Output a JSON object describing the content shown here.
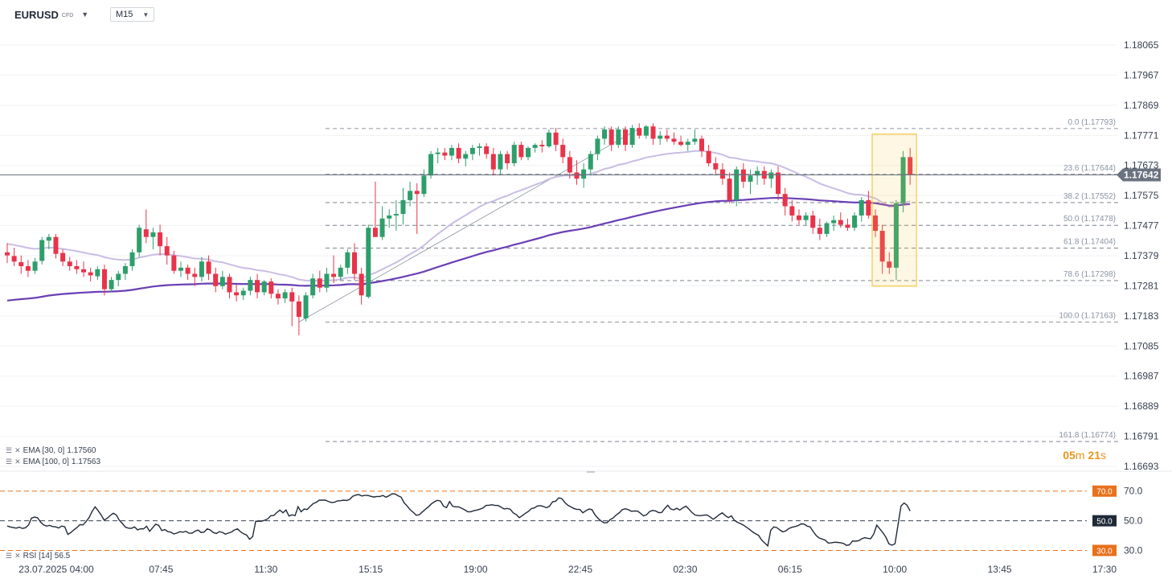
{
  "header": {
    "symbol": "EURUSD",
    "symbol_type": "CFD",
    "timeframe": "M15"
  },
  "indicators": {
    "ema30_label": "EMA [30, 0]",
    "ema30_value": "1.17560",
    "ema100_label": "EMA [100, 0]",
    "ema100_value": "1.17563",
    "rsi_label": "RSI [14]",
    "rsi_value": "56.5"
  },
  "countdown": {
    "minutes": "05",
    "m_unit": "m",
    "seconds": "21",
    "s_unit": "s"
  },
  "colors": {
    "up": "#2e9e6b",
    "down": "#e8334a",
    "ema30": "#c9bde3",
    "ema100": "#6a3fb5",
    "rsi_band": "#e8711c",
    "highlight": "#f5c842",
    "price_tag": "#6b7280"
  },
  "chart_data": {
    "type": "candlestick",
    "symbol": "EURUSD",
    "ylim": [
      1.16693,
      1.18065
    ],
    "y_ticks": [
      "1.18065",
      "1.17967",
      "1.17869",
      "1.17771",
      "1.17673",
      "1.17575",
      "1.17477",
      "1.17379",
      "1.17281",
      "1.17183",
      "1.17085",
      "1.16987",
      "1.16889",
      "1.16791",
      "1.16693"
    ],
    "x_ticks": [
      "23.07.2025  04:00",
      "07:45",
      "11:30",
      "15:15",
      "19:00",
      "22:45",
      "02:30",
      "06:15",
      "10:00",
      "13:45",
      "17:30"
    ],
    "current_price": "1.17642",
    "fibonacci": [
      {
        "label": "0.0 (1.17793)",
        "price": 1.17793
      },
      {
        "label": "23.6 (1.17644)",
        "price": 1.17644
      },
      {
        "label": "38.2 (1.17552)",
        "price": 1.17552
      },
      {
        "label": "50.0 (1.17478)",
        "price": 1.17478
      },
      {
        "label": "61.8 (1.17404)",
        "price": 1.17404
      },
      {
        "label": "78.6 (1.17298)",
        "price": 1.17298
      },
      {
        "label": "100.0 (1.17163)",
        "price": 1.17163
      },
      {
        "label": "161.8 (1.16774)",
        "price": 1.16774
      }
    ],
    "candles": [
      [
        1.1739,
        1.1742,
        1.17355,
        1.1738
      ],
      [
        1.17378,
        1.17405,
        1.17345,
        1.1736
      ],
      [
        1.17358,
        1.1738,
        1.1732,
        1.17345
      ],
      [
        1.17345,
        1.17365,
        1.1731,
        1.1733
      ],
      [
        1.1733,
        1.17372,
        1.1732,
        1.1736
      ],
      [
        1.17362,
        1.1744,
        1.1735,
        1.1743
      ],
      [
        1.17428,
        1.1745,
        1.174,
        1.1744
      ],
      [
        1.1744,
        1.1745,
        1.1737,
        1.17385
      ],
      [
        1.17388,
        1.174,
        1.17345,
        1.1736
      ],
      [
        1.1736,
        1.17375,
        1.1733,
        1.17345
      ],
      [
        1.17345,
        1.17365,
        1.1732,
        1.17335
      ],
      [
        1.17335,
        1.1736,
        1.1731,
        1.17325
      ],
      [
        1.17325,
        1.1734,
        1.17295,
        1.17315
      ],
      [
        1.17312,
        1.17345,
        1.173,
        1.17335
      ],
      [
        1.17335,
        1.1735,
        1.1725,
        1.1727
      ],
      [
        1.1727,
        1.1731,
        1.1726,
        1.173
      ],
      [
        1.173,
        1.1733,
        1.1728,
        1.1732
      ],
      [
        1.1732,
        1.17355,
        1.173,
        1.17345
      ],
      [
        1.17345,
        1.174,
        1.1733,
        1.1739
      ],
      [
        1.1739,
        1.1748,
        1.17375,
        1.1747
      ],
      [
        1.17465,
        1.1753,
        1.1742,
        1.1744
      ],
      [
        1.1744,
        1.1747,
        1.174,
        1.17455
      ],
      [
        1.17455,
        1.1748,
        1.1738,
        1.1741
      ],
      [
        1.1741,
        1.1744,
        1.1735,
        1.1738
      ],
      [
        1.1738,
        1.17395,
        1.1732,
        1.1733
      ],
      [
        1.1733,
        1.1736,
        1.1731,
        1.1734
      ],
      [
        1.1734,
        1.1735,
        1.173,
        1.1732
      ],
      [
        1.1732,
        1.1734,
        1.1728,
        1.1731
      ],
      [
        1.1731,
        1.17375,
        1.17295,
        1.1736
      ],
      [
        1.1736,
        1.1738,
        1.173,
        1.1732
      ],
      [
        1.1732,
        1.1734,
        1.1726,
        1.1728
      ],
      [
        1.1728,
        1.1733,
        1.1727,
        1.1731
      ],
      [
        1.1731,
        1.1732,
        1.1724,
        1.1726
      ],
      [
        1.1726,
        1.17285,
        1.1723,
        1.1725
      ],
      [
        1.1725,
        1.17275,
        1.17235,
        1.17265
      ],
      [
        1.17265,
        1.1731,
        1.1725,
        1.173
      ],
      [
        1.173,
        1.1732,
        1.1724,
        1.1726
      ],
      [
        1.1726,
        1.173,
        1.1725,
        1.17295
      ],
      [
        1.17295,
        1.17305,
        1.1724,
        1.17255
      ],
      [
        1.17255,
        1.1727,
        1.1722,
        1.1724
      ],
      [
        1.1724,
        1.1727,
        1.17225,
        1.1726
      ],
      [
        1.1726,
        1.17275,
        1.1715,
        1.1723
      ],
      [
        1.1723,
        1.1725,
        1.1712,
        1.1718
      ],
      [
        1.17175,
        1.1726,
        1.17165,
        1.1725
      ],
      [
        1.1725,
        1.1732,
        1.1724,
        1.17305
      ],
      [
        1.17305,
        1.1733,
        1.1726,
        1.17275
      ],
      [
        1.17275,
        1.1734,
        1.1726,
        1.1732
      ],
      [
        1.1732,
        1.1738,
        1.1729,
        1.1731
      ],
      [
        1.1731,
        1.1735,
        1.173,
        1.1734
      ],
      [
        1.1734,
        1.174,
        1.1732,
        1.1739
      ],
      [
        1.1739,
        1.1742,
        1.173,
        1.1732
      ],
      [
        1.1732,
        1.1734,
        1.1722,
        1.1725
      ],
      [
        1.17245,
        1.1748,
        1.1724,
        1.1747
      ],
      [
        1.1747,
        1.1762,
        1.1744,
        1.1744
      ],
      [
        1.1744,
        1.1754,
        1.1743,
        1.175
      ],
      [
        1.175,
        1.1753,
        1.1747,
        1.1751
      ],
      [
        1.1751,
        1.1756,
        1.1746,
        1.17515
      ],
      [
        1.17515,
        1.176,
        1.1748,
        1.1756
      ],
      [
        1.1756,
        1.1762,
        1.1754,
        1.1759
      ],
      [
        1.1759,
        1.17615,
        1.1745,
        1.1758
      ],
      [
        1.1758,
        1.1766,
        1.1757,
        1.1764
      ],
      [
        1.1764,
        1.1772,
        1.1763,
        1.1771
      ],
      [
        1.1771,
        1.1773,
        1.1768,
        1.17715
      ],
      [
        1.17715,
        1.1773,
        1.1769,
        1.17705
      ],
      [
        1.17705,
        1.1774,
        1.1769,
        1.1773
      ],
      [
        1.1773,
        1.17745,
        1.1768,
        1.17695
      ],
      [
        1.17695,
        1.1772,
        1.1767,
        1.1771
      ],
      [
        1.1771,
        1.1774,
        1.1769,
        1.1773
      ],
      [
        1.1773,
        1.17745,
        1.17705,
        1.17735
      ],
      [
        1.17735,
        1.17745,
        1.17695,
        1.1771
      ],
      [
        1.1771,
        1.1773,
        1.1764,
        1.1766
      ],
      [
        1.1766,
        1.1772,
        1.1764,
        1.1771
      ],
      [
        1.1771,
        1.1772,
        1.1766,
        1.1768
      ],
      [
        1.1768,
        1.1775,
        1.1767,
        1.1774
      ],
      [
        1.1774,
        1.1775,
        1.1769,
        1.177
      ],
      [
        1.177,
        1.17735,
        1.1769,
        1.1773
      ],
      [
        1.1773,
        1.17745,
        1.17715,
        1.1774
      ],
      [
        1.1774,
        1.17755,
        1.17715,
        1.17735
      ],
      [
        1.17735,
        1.1779,
        1.1773,
        1.1778
      ],
      [
        1.1778,
        1.17795,
        1.1772,
        1.1774
      ],
      [
        1.1774,
        1.1776,
        1.1768,
        1.177
      ],
      [
        1.177,
        1.1772,
        1.1763,
        1.1765
      ],
      [
        1.1765,
        1.1769,
        1.1761,
        1.1763
      ],
      [
        1.1763,
        1.1768,
        1.176,
        1.1766
      ],
      [
        1.1766,
        1.1772,
        1.1764,
        1.1771
      ],
      [
        1.1771,
        1.1777,
        1.1769,
        1.1776
      ],
      [
        1.1776,
        1.178,
        1.1774,
        1.1779
      ],
      [
        1.1779,
        1.178,
        1.1772,
        1.1774
      ],
      [
        1.1774,
        1.178,
        1.1773,
        1.1779
      ],
      [
        1.1779,
        1.178,
        1.1772,
        1.1774
      ],
      [
        1.1774,
        1.17805,
        1.1773,
        1.17795
      ],
      [
        1.17795,
        1.1781,
        1.1776,
        1.1777
      ],
      [
        1.1777,
        1.17805,
        1.1776,
        1.178
      ],
      [
        1.178,
        1.1781,
        1.1774,
        1.1776
      ],
      [
        1.1776,
        1.17785,
        1.1774,
        1.1777
      ],
      [
        1.1777,
        1.1779,
        1.1775,
        1.1776
      ],
      [
        1.1776,
        1.1778,
        1.1774,
        1.1775
      ],
      [
        1.1775,
        1.1777,
        1.17735,
        1.1774
      ],
      [
        1.1774,
        1.1776,
        1.1772,
        1.1775
      ],
      [
        1.1775,
        1.1779,
        1.1774,
        1.1776
      ],
      [
        1.1776,
        1.1777,
        1.177,
        1.1772
      ],
      [
        1.1772,
        1.1774,
        1.1767,
        1.1768
      ],
      [
        1.1768,
        1.177,
        1.1764,
        1.1766
      ],
      [
        1.1766,
        1.1768,
        1.1761,
        1.1763
      ],
      [
        1.1763,
        1.1765,
        1.1755,
        1.1756
      ],
      [
        1.1756,
        1.1767,
        1.1754,
        1.1766
      ],
      [
        1.1766,
        1.1768,
        1.176,
        1.1762
      ],
      [
        1.1762,
        1.1766,
        1.1758,
        1.1764
      ],
      [
        1.1764,
        1.1767,
        1.1761,
        1.17655
      ],
      [
        1.17655,
        1.1767,
        1.1761,
        1.1763
      ],
      [
        1.1763,
        1.1766,
        1.176,
        1.1765
      ],
      [
        1.1765,
        1.1767,
        1.1756,
        1.1758
      ],
      [
        1.1758,
        1.176,
        1.1751,
        1.1754
      ],
      [
        1.1754,
        1.1756,
        1.1749,
        1.1751
      ],
      [
        1.1751,
        1.1753,
        1.1748,
        1.17495
      ],
      [
        1.17495,
        1.1752,
        1.1748,
        1.1751
      ],
      [
        1.1751,
        1.17525,
        1.1745,
        1.1747
      ],
      [
        1.1747,
        1.175,
        1.1743,
        1.1745
      ],
      [
        1.1745,
        1.1749,
        1.1744,
        1.17485
      ],
      [
        1.17485,
        1.1751,
        1.1746,
        1.17495
      ],
      [
        1.17495,
        1.1752,
        1.1747,
        1.1748
      ],
      [
        1.1748,
        1.175,
        1.1746,
        1.1747
      ],
      [
        1.1747,
        1.1752,
        1.1746,
        1.1751
      ],
      [
        1.1751,
        1.1757,
        1.1749,
        1.1756
      ],
      [
        1.1756,
        1.1759,
        1.175,
        1.1751
      ],
      [
        1.1751,
        1.1753,
        1.1744,
        1.1746
      ],
      [
        1.1746,
        1.1748,
        1.1732,
        1.1736
      ],
      [
        1.1736,
        1.1739,
        1.1732,
        1.1734
      ],
      [
        1.1734,
        1.1756,
        1.173,
        1.1755
      ],
      [
        1.1755,
        1.1772,
        1.1752,
        1.177
      ],
      [
        1.177,
        1.1773,
        1.1761,
        1.17642
      ]
    ],
    "rsi": {
      "name": "RSI [14]",
      "levels": [
        70.0,
        50.0,
        30.0
      ],
      "ylim": [
        27,
        78
      ],
      "values": [
        46.5,
        45.8,
        45.4,
        45.0,
        45.7,
        44.8,
        45.3,
        47.1,
        51.8,
        52.5,
        52.0,
        49.1,
        47.2,
        46.4,
        46.9,
        46.1,
        45.9,
        45.1,
        46.5,
        45.9,
        40.8,
        42.1,
        43.9,
        45.4,
        47.4,
        47.2,
        49.4,
        52.1,
        56.2,
        59.4,
        56.8,
        53.9,
        50.4,
        51.7,
        53.6,
        55.1,
        53.9,
        50.3,
        48.2,
        45.7,
        45.0,
        44.9,
        45.9,
        43.9,
        44.6,
        44.5,
        46.3,
        42.9,
        45.3,
        47.7,
        46.9,
        43.4,
        44.1,
        42.7,
        42.3,
        41.1,
        41.7,
        42.6,
        42.3,
        42.9,
        41.6,
        41.6,
        43.0,
        43.7,
        42.1,
        42.4,
        44.5,
        43.8,
        42.1,
        41.4,
        42.6,
        42.2,
        41.0,
        41.7,
        42.4,
        43.8,
        44.5,
        42.6,
        41.2,
        40.4,
        37.5,
        39.3,
        49.6,
        49.8,
        49.7,
        50.4,
        51.3,
        53.4,
        53.6,
        55.6,
        57.2,
        55.4,
        57.3,
        53.2,
        54.0,
        53.5,
        59.5,
        56.1,
        57.9,
        57.6,
        59.7,
        61.6,
        62.5,
        63.9,
        63.9,
        63.9,
        63.0,
        62.3,
        62.5,
        63.4,
        63.5,
        63.9,
        63.7,
        64.4,
        66.5,
        67.3,
        67.7,
        66.7,
        67.1,
        67.1,
        66.5,
        66.0,
        66.4,
        66.4,
        67.1,
        65.9,
        66.9,
        68.2,
        68.1,
        66.9,
        65.9,
        62.1,
        60.0,
        57.4,
        55.7,
        53.7,
        54.1,
        55.9,
        57.7,
        59.4,
        61.4,
        62.8,
        63.8,
        63.3,
        59.8,
        58.9,
        62.9,
        59.8,
        59.4,
        59.4,
        58.4,
        57.4,
        56.1,
        56.1,
        56.8,
        57.2,
        57.8,
        58.6,
        60.3,
        60.5,
        60.8,
        60.3,
        60.3,
        59.2,
        58.0,
        58.3,
        57.8,
        55.4,
        54.2,
        52.1,
        53.5,
        55.0,
        56.3,
        58.2,
        58.7,
        60.0,
        60.2,
        59.6,
        58.8,
        59.9,
        62.8,
        63.2,
        65.4,
        65.0,
        62.5,
        60.5,
        59.4,
        58.3,
        57.7,
        57.6,
        55.4,
        56.8,
        57.9,
        57.5,
        54.0,
        51.6,
        49.9,
        48.6,
        48.8,
        50.8,
        51.9,
        53.9,
        55.4,
        57.5,
        58.1,
        57.5,
        56.4,
        56.6,
        56.5,
        55.1,
        53.3,
        54.0,
        56.2,
        57.0,
        56.6,
        55.5,
        55.6,
        58.2,
        60.5,
        57.9,
        57.4,
        58.4,
        57.2,
        58.7,
        59.9,
        57.8,
        55.6,
        53.9,
        53.5,
        53.5,
        53.8,
        53.9,
        52.6,
        51.0,
        52.5,
        54.1,
        55.3,
        53.5,
        52.1,
        53.3,
        50.3,
        49.0,
        48.1,
        47.0,
        45.6,
        44.2,
        42.5,
        41.2,
        40.2,
        37.0,
        35.0,
        33.0,
        43.6,
        45.8,
        45.4,
        43.8,
        42.5,
        43.2,
        44.8,
        45.6,
        46.1,
        46.7,
        47.9,
        47.8,
        46.4,
        45.9,
        42.8,
        40.0,
        38.4,
        37.7,
        36.8,
        35.0,
        35.1,
        35.5,
        35.4,
        35.2,
        34.7,
        33.4,
        33.8,
        36.4,
        36.2,
        36.5,
        37.8,
        38.6,
        38.2,
        37.9,
        41.1,
        47.0,
        44.5,
        42.0,
        39.0,
        34.5,
        33.5,
        34.5,
        47.0,
        60.0,
        62.0,
        60.5,
        56.5
      ]
    }
  }
}
